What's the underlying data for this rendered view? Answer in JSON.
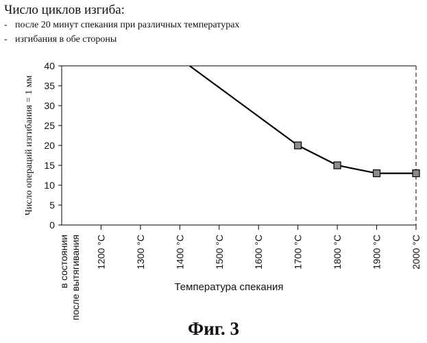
{
  "header": {
    "title": "Число циклов изгиба:",
    "lines": [
      "после 20 минут спекания при различных температурах",
      "изгибания в обе стороны"
    ],
    "dash": "-"
  },
  "figure_caption": "Фиг. 3",
  "chart_data": {
    "type": "line",
    "categories": [
      "в состоянии после вытягивания",
      "1200 °C",
      "1300 °C",
      "1400 °C",
      "1500 °C",
      "1600 °C",
      "1700 °C",
      "1800 °C",
      "1900 °C",
      "2000 °C"
    ],
    "category_lines": [
      [
        "в состоянии",
        "после вытягивания"
      ]
    ],
    "series": [
      {
        "points": [
          {
            "x": 3.25,
            "y": 40,
            "marker": false
          },
          {
            "x": 6,
            "y": 20,
            "marker": true
          },
          {
            "x": 7,
            "y": 15,
            "marker": true
          },
          {
            "x": 8,
            "y": 13,
            "marker": true
          },
          {
            "x": 9,
            "y": 13,
            "marker": true
          }
        ]
      }
    ],
    "ylabel": "Число операций изгибания = 1 мм",
    "xlabel": "Температура спекания",
    "ylim": [
      0,
      40
    ],
    "yticks": [
      0,
      5,
      10,
      15,
      20,
      25,
      30,
      35,
      40
    ],
    "grid": false,
    "legend": "none",
    "colors": {
      "line": "#000000",
      "marker_fill": "#8c8c8c",
      "axis": "#000000"
    }
  }
}
